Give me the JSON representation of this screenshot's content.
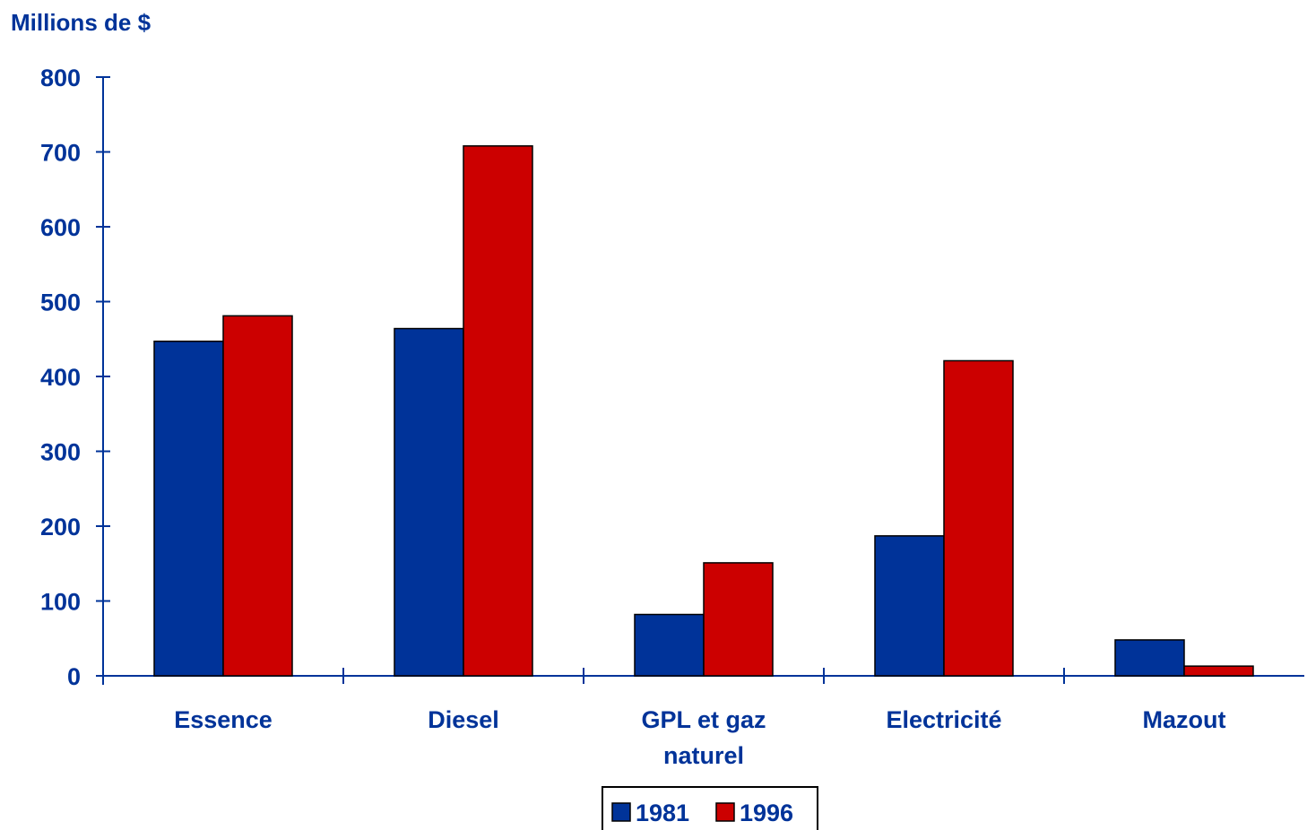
{
  "chart_data": {
    "type": "bar",
    "ylabel": "Millions de $",
    "xlabel": "",
    "ylim": [
      0,
      800
    ],
    "yticks": [
      "0",
      "100",
      "200",
      "300",
      "400",
      "500",
      "600",
      "700",
      "800"
    ],
    "categories": [
      [
        "Essence"
      ],
      [
        "Diesel"
      ],
      [
        "GPL et gaz",
        "naturel"
      ],
      [
        "Electricité"
      ],
      [
        "Mazout"
      ]
    ],
    "series": [
      {
        "name": "1981",
        "color": "#003399",
        "values": [
          447,
          464,
          82,
          187,
          48
        ]
      },
      {
        "name": "1996",
        "color": "#cc0000",
        "values": [
          481,
          708,
          151,
          421,
          13
        ]
      }
    ],
    "grid": false,
    "legend_position": "bottom-center",
    "axis_color": "#003399"
  }
}
